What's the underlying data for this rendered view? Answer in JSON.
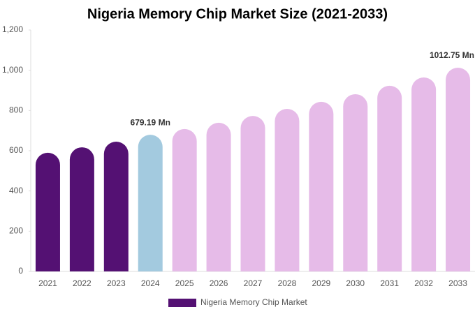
{
  "chart_data": {
    "type": "bar",
    "title": "Nigeria Memory Chip Market Size (2021-2033)",
    "categories": [
      "2021",
      "2022",
      "2023",
      "2024",
      "2025",
      "2026",
      "2027",
      "2028",
      "2029",
      "2030",
      "2031",
      "2032",
      "2033"
    ],
    "series": [
      {
        "name": "Nigeria Memory Chip Market",
        "color": "#541173",
        "values": [
          590,
          617,
          645,
          679.19,
          708,
          739,
          773,
          808,
          843,
          881,
          923,
          964,
          1012.75
        ],
        "value_labels": [
          null,
          null,
          null,
          "679.19 Mn",
          null,
          null,
          null,
          null,
          null,
          null,
          null,
          null,
          "1012.75 Mn"
        ],
        "colors": [
          "#541173",
          "#541173",
          "#541173",
          "#a3cadf",
          "#e6bbe8",
          "#e6bbe8",
          "#e6bbe8",
          "#e6bbe8",
          "#e6bbe8",
          "#e6bbe8",
          "#e6bbe8",
          "#e6bbe8",
          "#e6bbe8"
        ]
      }
    ],
    "ylim": [
      0,
      1200
    ],
    "yticks": [
      0,
      200,
      400,
      600,
      800,
      {
        "value": 1000,
        "label": "1,000"
      },
      {
        "value": 1200,
        "label": "1,200"
      }
    ],
    "legend": "bottom"
  }
}
